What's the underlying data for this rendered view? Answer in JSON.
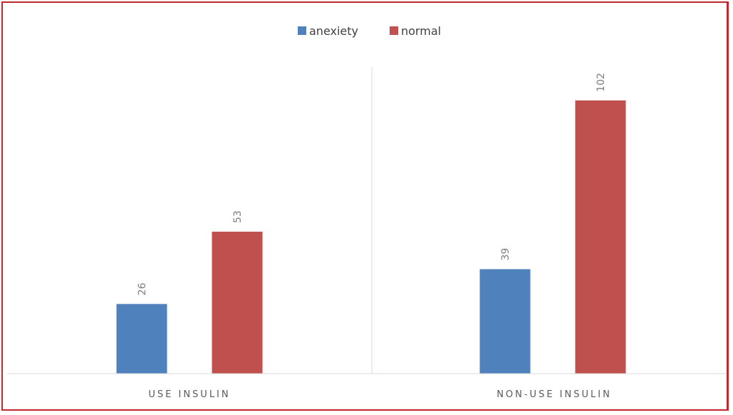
{
  "chart_data": {
    "type": "bar",
    "categories": [
      "USE INSULIN",
      "NON-USE INSULIN"
    ],
    "series": [
      {
        "name": "anexiety",
        "values": [
          26,
          39
        ],
        "color": "#4f81bd"
      },
      {
        "name": "normal",
        "values": [
          53,
          102
        ],
        "color": "#c0504d"
      }
    ],
    "ylim": [
      0,
      115
    ],
    "grid": false,
    "legend_position": "top-center",
    "data_labels": true,
    "category_separator": true,
    "title": "",
    "xlabel": "",
    "ylabel": ""
  },
  "colors": {
    "border": "#c0282d",
    "axis": "#d9d9d9"
  }
}
